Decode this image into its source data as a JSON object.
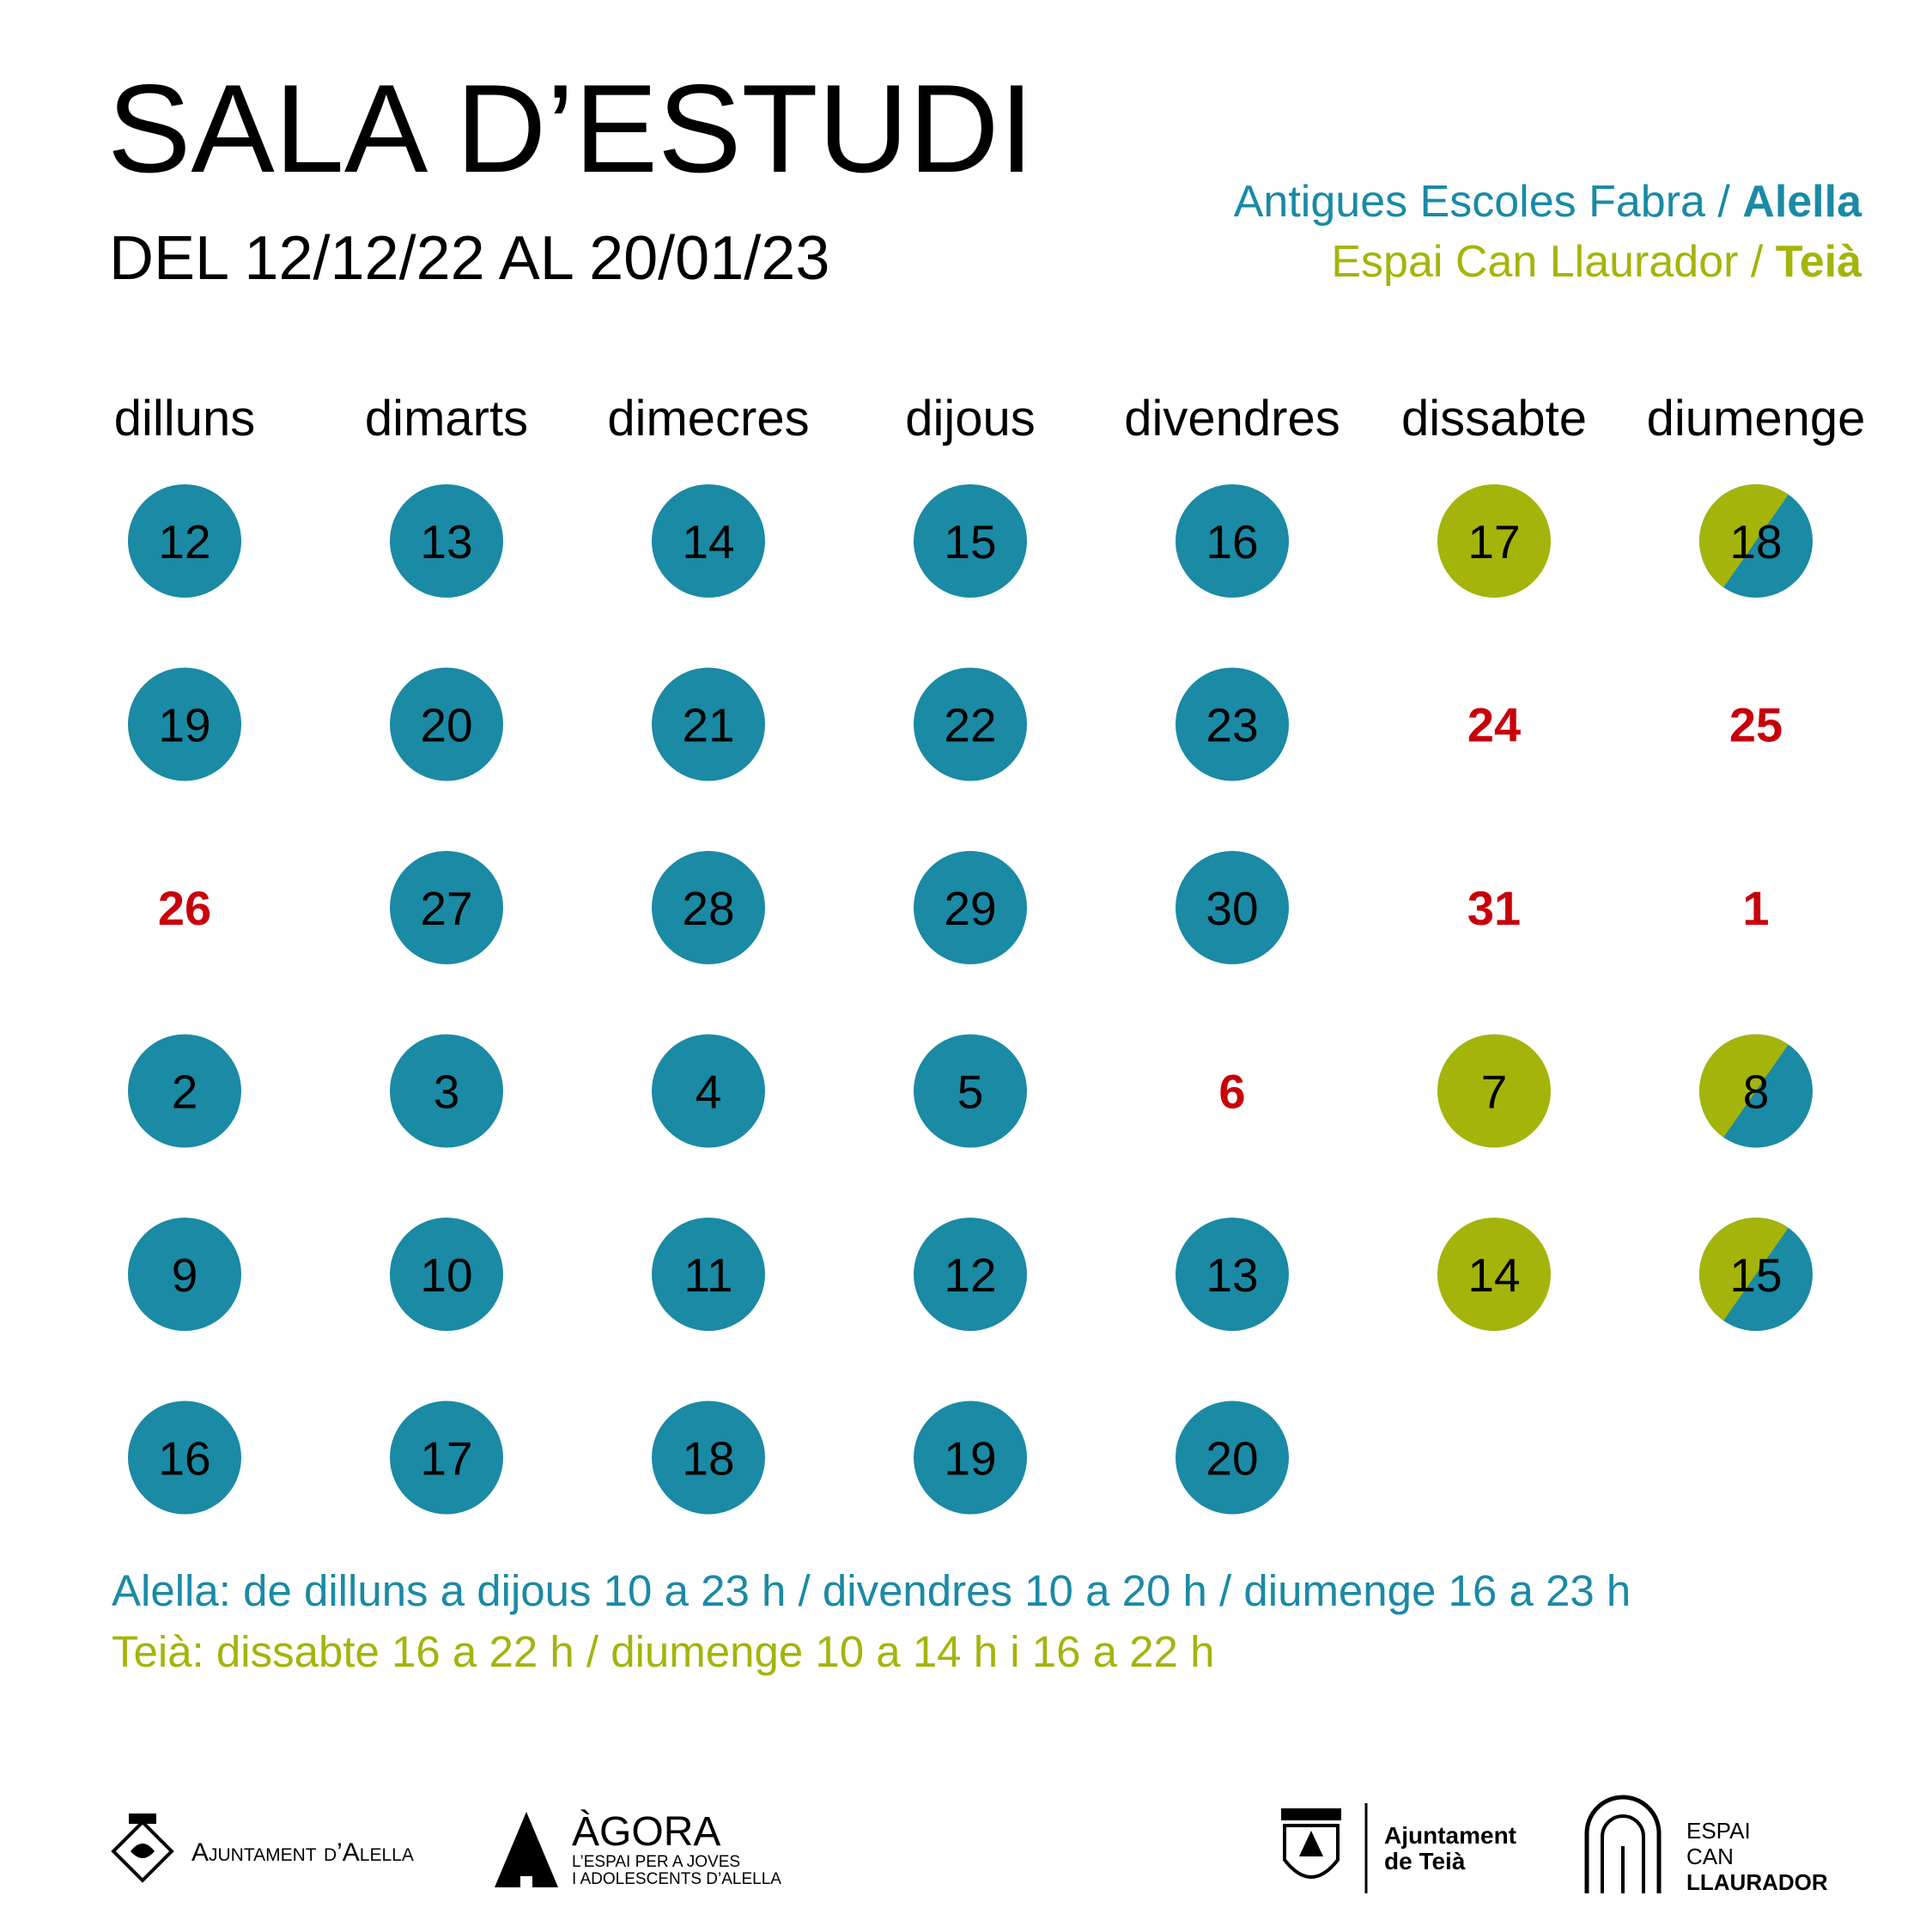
{
  "header": {
    "title": "SALA D’ESTUDI",
    "subtitle": "DEL 12/12/22 AL 20/01/23"
  },
  "locations": [
    {
      "place": "Antigues Escoles Fabra / ",
      "town": "Alella",
      "kind": "alella"
    },
    {
      "place": "Espai Can Llaurador / ",
      "town": "Teià",
      "kind": "teia"
    }
  ],
  "colors": {
    "alella": "#1a8aa5",
    "teia": "#a4b40a",
    "closed": "#c8000a"
  },
  "weekdays": [
    "dilluns",
    "dimarts",
    "dimecres",
    "dijous",
    "divendres",
    "dissabte",
    "diumenge"
  ],
  "days": {
    "rows": [
      [
        {
          "day": 12,
          "kind": "alella"
        },
        {
          "day": 13,
          "kind": "alella"
        },
        {
          "day": 14,
          "kind": "alella"
        },
        {
          "day": 15,
          "kind": "alella"
        },
        {
          "day": 16,
          "kind": "alella"
        },
        {
          "day": 17,
          "kind": "teia"
        },
        {
          "day": 18,
          "kind": "both"
        }
      ],
      [
        {
          "day": 19,
          "kind": "alella"
        },
        {
          "day": 20,
          "kind": "alella"
        },
        {
          "day": 21,
          "kind": "alella"
        },
        {
          "day": 22,
          "kind": "alella"
        },
        {
          "day": 23,
          "kind": "alella"
        },
        {
          "day": 24,
          "kind": "closed"
        },
        {
          "day": 25,
          "kind": "closed"
        }
      ],
      [
        {
          "day": 26,
          "kind": "closed"
        },
        {
          "day": 27,
          "kind": "alella"
        },
        {
          "day": 28,
          "kind": "alella"
        },
        {
          "day": 29,
          "kind": "alella"
        },
        {
          "day": 30,
          "kind": "alella"
        },
        {
          "day": 31,
          "kind": "closed"
        },
        {
          "day": 1,
          "kind": "closed"
        }
      ],
      [
        {
          "day": 2,
          "kind": "alella"
        },
        {
          "day": 3,
          "kind": "alella"
        },
        {
          "day": 4,
          "kind": "alella"
        },
        {
          "day": 5,
          "kind": "alella"
        },
        {
          "day": 6,
          "kind": "closed"
        },
        {
          "day": 7,
          "kind": "teia"
        },
        {
          "day": 8,
          "kind": "both"
        }
      ],
      [
        {
          "day": 9,
          "kind": "alella"
        },
        {
          "day": 10,
          "kind": "alella"
        },
        {
          "day": 11,
          "kind": "alella"
        },
        {
          "day": 12,
          "kind": "alella"
        },
        {
          "day": 13,
          "kind": "alella"
        },
        {
          "day": 14,
          "kind": "teia"
        },
        {
          "day": 15,
          "kind": "both"
        }
      ],
      [
        {
          "day": 16,
          "kind": "alella"
        },
        {
          "day": 17,
          "kind": "alella"
        },
        {
          "day": 18,
          "kind": "alella"
        },
        {
          "day": 19,
          "kind": "alella"
        },
        {
          "day": 20,
          "kind": "alella"
        }
      ]
    ]
  },
  "schedules": [
    {
      "text": "Alella: de dilluns a dijous 10 a 23 h / divendres 10 a 20 h / diumenge 16 a 23 h",
      "kind": "alella"
    },
    {
      "text": "Teià: dissabte 16 a 22 h / diumenge 10 a 14 h i 16 a 22 h",
      "kind": "teia"
    }
  ],
  "footer": {
    "alella": "Ajuntament d’Alella",
    "agora": {
      "name": "ÀGORA",
      "line1": "L’ESPAI PER A JOVES",
      "line2": "I ADOLESCENTS D’ALELLA"
    },
    "teia": {
      "line1": "Ajuntament",
      "line2": "de Teià"
    },
    "canllaurador": {
      "line1": "ESPAI",
      "line2": "CAN",
      "line3": "LLAURADOR"
    }
  }
}
